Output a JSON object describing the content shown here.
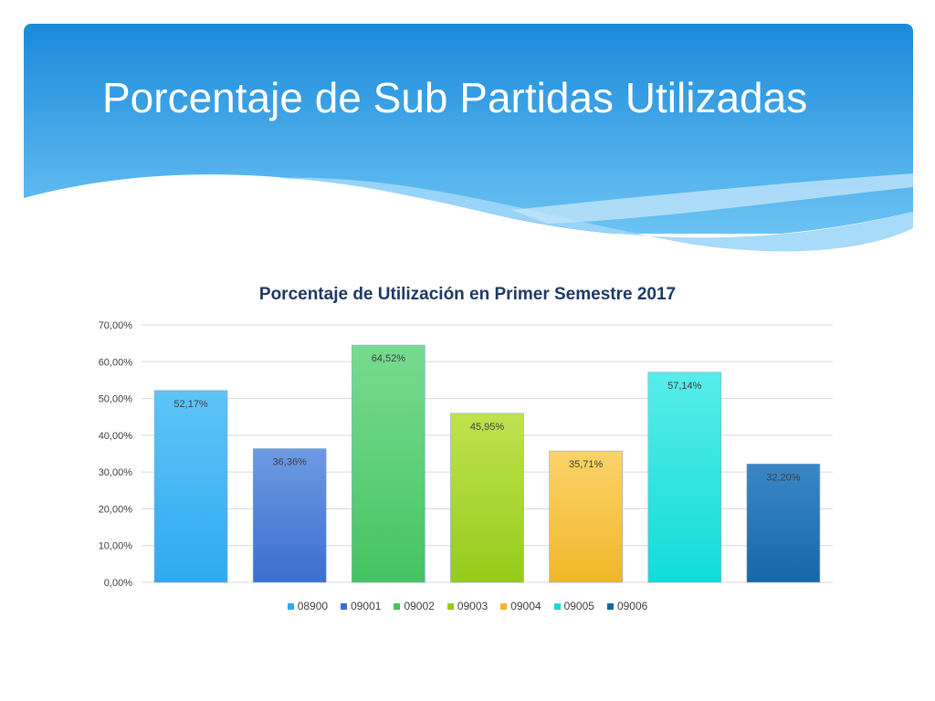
{
  "slide": {
    "title": "Porcentaje de Sub Partidas Utilizadas"
  },
  "colors": {
    "header_top": "#1e8fdc",
    "header_bottom": "#5ab9f2",
    "wave_light": "#9fd6f8",
    "series": [
      "#2eaaf0",
      "#3a6fce",
      "#45c462",
      "#95cc1c",
      "#f0b72a",
      "#12dcd8",
      "#1668a8"
    ],
    "series_light": [
      "#5ec4f7",
      "#6d9ae3",
      "#78db90",
      "#c0e24f",
      "#fbd36a",
      "#58ecea",
      "#3b87c6"
    ],
    "grid": "#d9d9d9",
    "chart_title": "#1f3864"
  },
  "chart_data": {
    "type": "bar",
    "title": "Porcentaje de Utilización en Primer Semestre 2017",
    "categories": [
      "08900",
      "09001",
      "09002",
      "09003",
      "09004",
      "09005",
      "09006"
    ],
    "values": [
      52.17,
      36.36,
      64.52,
      45.95,
      35.71,
      57.14,
      32.2
    ],
    "value_labels": [
      "52,17%",
      "36,36%",
      "64,52%",
      "45,95%",
      "35,71%",
      "57,14%",
      "32,20%"
    ],
    "ylim": [
      0,
      70
    ],
    "y_ticks": [
      "0,00%",
      "10,00%",
      "20,00%",
      "30,00%",
      "40,00%",
      "50,00%",
      "60,00%",
      "70,00%"
    ],
    "xlabel": "",
    "ylabel": "",
    "grid": true,
    "legend_position": "bottom"
  }
}
